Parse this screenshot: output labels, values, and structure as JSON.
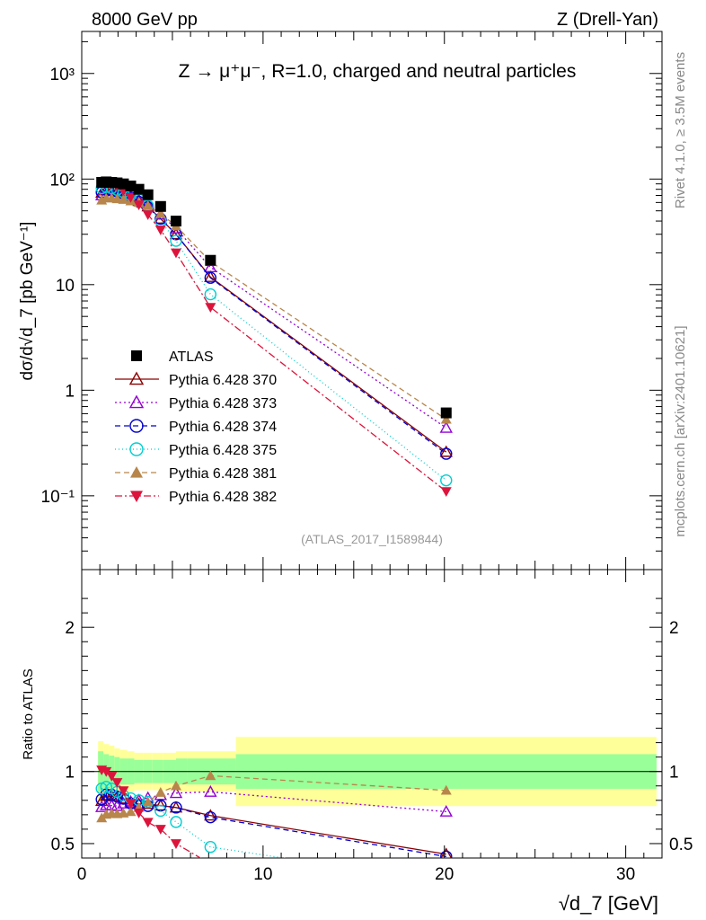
{
  "header": {
    "left": "8000 GeV pp",
    "right": "Z (Drell-Yan)"
  },
  "side_labels": {
    "rivet": "Rivet 4.1.0, ≥ 3.5M events",
    "mcplots": "mcplots.cern.ch [arXiv:2401.10621]"
  },
  "chart_data": {
    "type": "scatter",
    "title": "Z → μ⁺μ⁻, R=1.0, charged and neutral particles",
    "analysis_tag": "(ATLAS_2017_I1589844)",
    "xlabel": "√d_7 [GeV]",
    "ylabel": "dσ/d√d_7 [pb GeV⁻¹]",
    "ratio_ylabel": "Ratio to ATLAS",
    "xlim": [
      0,
      32
    ],
    "ylim": [
      0.02,
      2500
    ],
    "yscale": "log",
    "ratio_ylim": [
      0.4,
      2.4
    ],
    "x_ticks": [
      "0",
      "10",
      "20",
      "30"
    ],
    "y_ticks": [
      "10³",
      "10²",
      "10",
      "1",
      "10⁻¹"
    ],
    "ratio_ticks": [
      "0.5",
      "1",
      "2"
    ],
    "x": [
      1.1,
      1.35,
      1.65,
      1.95,
      2.3,
      2.7,
      3.15,
      3.65,
      4.35,
      5.2,
      7.1,
      20.1
    ],
    "ratio_band_edges": [
      0.9,
      1.2,
      1.5,
      1.8,
      2.1,
      2.5,
      2.9,
      3.4,
      3.9,
      4.5,
      5.2,
      5.8,
      8.5,
      31.7
    ],
    "ratio_band_inner": [
      0.14,
      0.12,
      0.11,
      0.1,
      0.09,
      0.09,
      0.08,
      0.08,
      0.08,
      0.08,
      0.09,
      0.09,
      0.12
    ],
    "ratio_band_outer": [
      0.21,
      0.19,
      0.18,
      0.16,
      0.15,
      0.14,
      0.13,
      0.13,
      0.13,
      0.13,
      0.14,
      0.14,
      0.24
    ],
    "series": [
      {
        "name": "ATLAS",
        "marker": "square",
        "color": "#000000",
        "dash": "",
        "values": [
          93,
          94,
          93,
          92,
          90,
          86,
          80,
          71,
          55,
          40,
          17,
          0.61
        ]
      },
      {
        "name": "Pythia 6.428 370",
        "marker": "triangle-open",
        "color": "#8b0000",
        "dash": "",
        "values": [
          74,
          78,
          77,
          76,
          73,
          67,
          62,
          55,
          42,
          30,
          11.8,
          0.26
        ]
      },
      {
        "name": "Pythia 6.428 373",
        "marker": "triangle-open",
        "color": "#9400d3",
        "dash": "2,3",
        "values": [
          70,
          72,
          71,
          70,
          70,
          68,
          64,
          58,
          46,
          34,
          14.6,
          0.44
        ]
      },
      {
        "name": "Pythia 6.428 374",
        "marker": "circle-open",
        "color": "#0000cd",
        "dash": "6,4",
        "values": [
          75,
          79,
          78,
          76,
          73,
          67,
          61,
          54,
          42,
          30,
          11.6,
          0.25
        ]
      },
      {
        "name": "Pythia 6.428 375",
        "marker": "circle-open",
        "color": "#00ced1",
        "dash": "1,3",
        "values": [
          82,
          84,
          82,
          79,
          75,
          70,
          64,
          56,
          40,
          26,
          8.1,
          0.14
        ]
      },
      {
        "name": "Pythia 6.428 381",
        "marker": "triangle-filled",
        "color": "#b8864b",
        "dash": "6,4",
        "values": [
          63,
          66,
          66,
          65,
          64,
          62,
          60,
          56,
          47,
          36,
          16.5,
          0.53
        ]
      },
      {
        "name": "Pythia 6.428 382",
        "marker": "triangle-down-filled",
        "color": "#dc143c",
        "dash": "8,3,2,3",
        "values": [
          94,
          94,
          90,
          85,
          78,
          67,
          57,
          46,
          33,
          20,
          6.1,
          0.11
        ]
      }
    ]
  }
}
